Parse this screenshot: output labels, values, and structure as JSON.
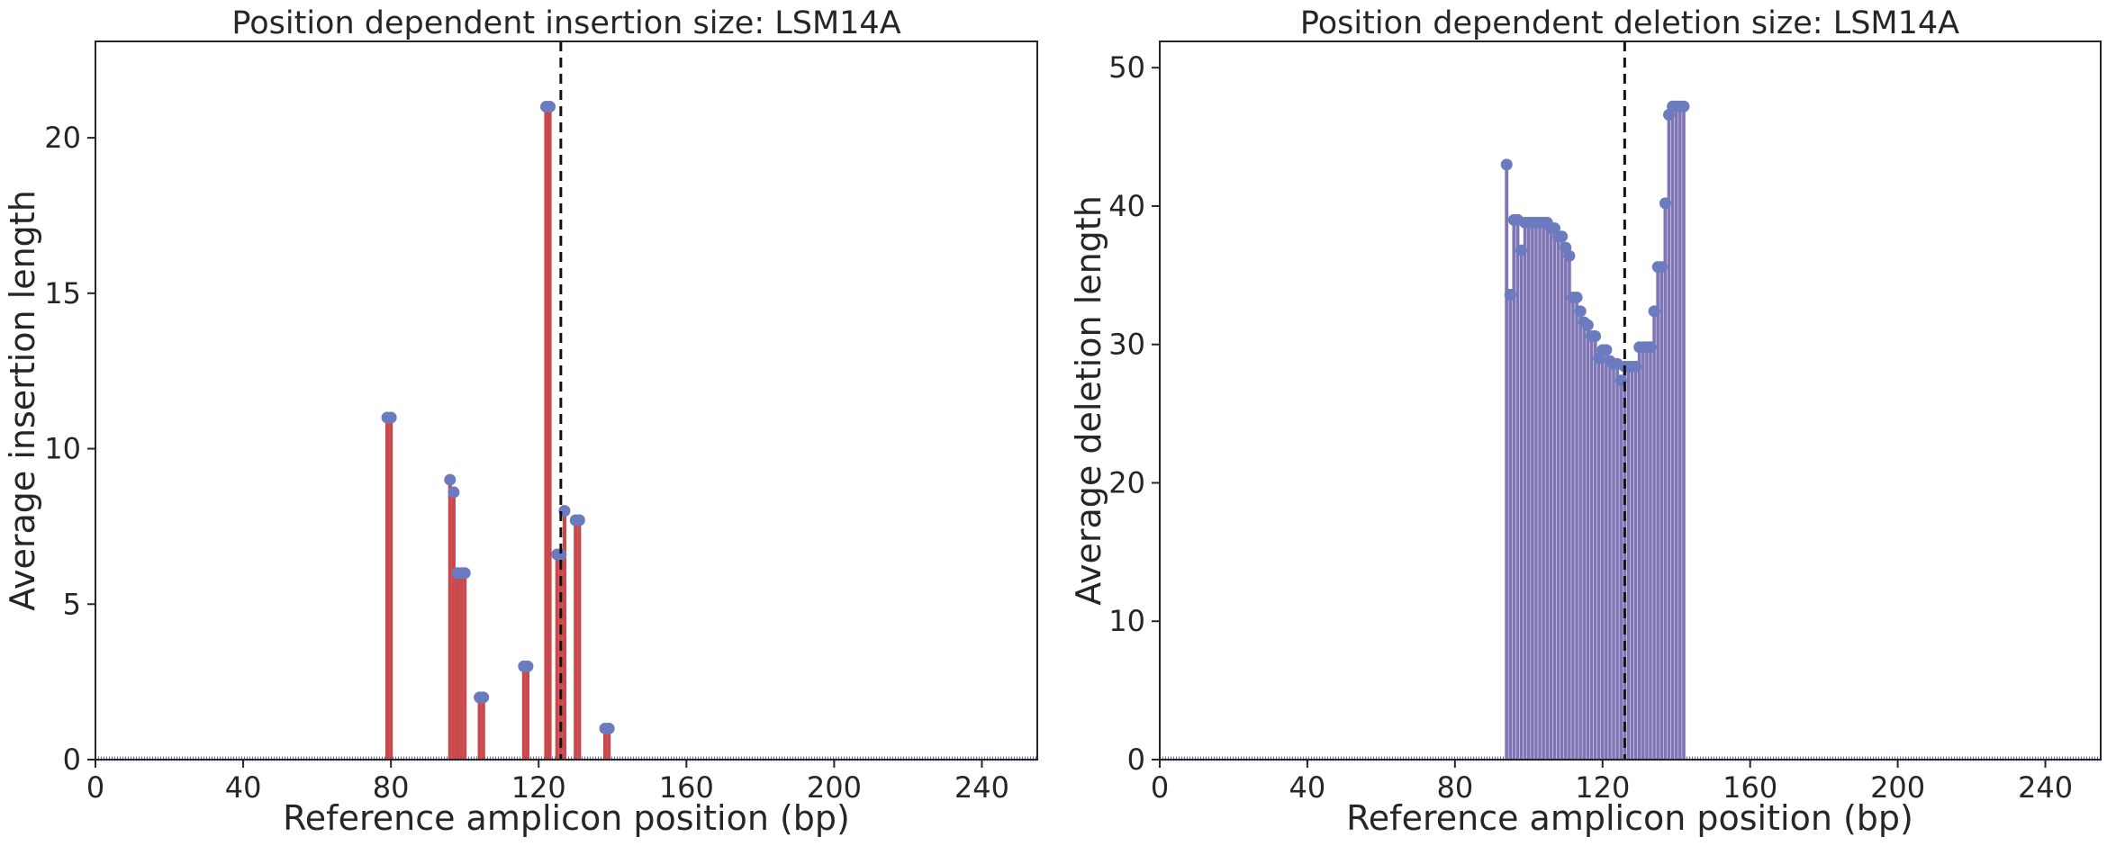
{
  "colors": {
    "insertion_bar": "#C8484C",
    "marker": "#6C7BBF",
    "deletion_fill": "#7F74B4",
    "baseline": "#5E6EB8",
    "cut_line": "#111111",
    "axes": "#262626"
  },
  "chart_data": [
    {
      "type": "bar",
      "title": "Position dependent insertion size: LSM14A",
      "xlabel": "Reference amplicon position (bp)",
      "ylabel": "Average insertion length",
      "xlim": [
        0,
        255
      ],
      "ylim": [
        0,
        23.1
      ],
      "xticks": [
        "0",
        "40",
        "80",
        "120",
        "160",
        "200",
        "240"
      ],
      "yticks": [
        "0",
        "5",
        "10",
        "15",
        "20"
      ],
      "cut_site": 126,
      "x": [
        79,
        80,
        96,
        97,
        98,
        99,
        100,
        104,
        105,
        116,
        117,
        122,
        123,
        125,
        126,
        127,
        130,
        131,
        138,
        139
      ],
      "values": [
        11,
        11,
        9,
        8.6,
        6,
        6,
        6,
        2,
        2,
        3,
        3,
        21,
        21,
        6.6,
        6.6,
        8,
        7.7,
        7.7,
        1,
        1
      ]
    },
    {
      "type": "area",
      "title": "Position dependent deletion size: LSM14A",
      "xlabel": "Reference amplicon position (bp)",
      "ylabel": "Average deletion length",
      "xlim": [
        0,
        255
      ],
      "ylim": [
        0,
        51.9
      ],
      "xticks": [
        "0",
        "40",
        "80",
        "120",
        "160",
        "200",
        "240"
      ],
      "yticks": [
        "0",
        "10",
        "20",
        "30",
        "40",
        "50"
      ],
      "cut_site": 126,
      "x": [
        94,
        95,
        96,
        97,
        98,
        99,
        100,
        101,
        102,
        103,
        104,
        105,
        106,
        107,
        108,
        109,
        110,
        111,
        112,
        113,
        114,
        115,
        116,
        117,
        118,
        119,
        120,
        121,
        122,
        123,
        124,
        125,
        126,
        127,
        128,
        129,
        130,
        131,
        132,
        133,
        134,
        135,
        136,
        137,
        138,
        139,
        140,
        141,
        142
      ],
      "values": [
        43,
        33.6,
        39,
        39,
        36.8,
        38.8,
        38.8,
        38.8,
        38.8,
        38.8,
        38.8,
        38.8,
        38.4,
        38.4,
        37.8,
        37.8,
        37,
        36.4,
        33.4,
        33.4,
        32.4,
        31.6,
        31.4,
        30.6,
        30.6,
        29,
        29.6,
        29.6,
        28.8,
        28.6,
        28.6,
        27.4,
        28.4,
        28.4,
        28.4,
        28.4,
        29.8,
        29.8,
        29.8,
        29.8,
        32.4,
        35.6,
        35.6,
        40.2,
        46.6,
        47.2,
        47.2,
        47.2,
        47.2
      ]
    }
  ]
}
